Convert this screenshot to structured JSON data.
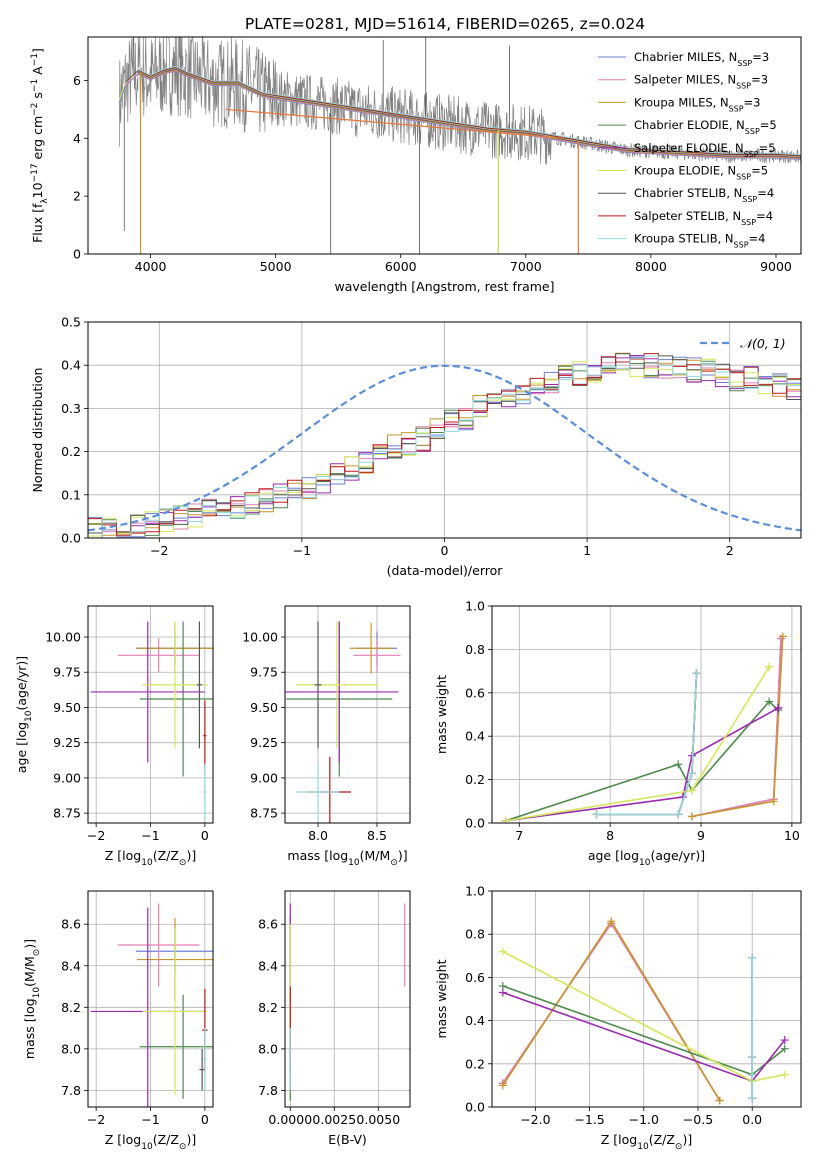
{
  "figure": {
    "title": "PLATE=0281, MJD=51614, FIBERID=0265, z=0.024"
  },
  "colors": {
    "Chabrier MILES": "#6b82d6",
    "Salpeter MILES": "#e67fb6",
    "Kroupa MILES": "#c8962a",
    "Chabrier ELODIE": "#4e8a4e",
    "Salpeter ELODIE": "#9a2ab0",
    "Kroupa ELODIE": "#d4e65a",
    "Chabrier STELIB": "#555555",
    "Salpeter STELIB": "#c01818",
    "Kroupa STELIB": "#8fd8e0",
    "data": "#808080",
    "gaussian": "#5b8fd9",
    "orange": "#e6783a"
  },
  "chart_data": [
    {
      "id": "spectrum",
      "type": "line",
      "title": "PLATE=0281, MJD=51614, FIBERID=0265, z=0.024",
      "xlabel": "wavelength [Angstrom, rest frame]",
      "ylabel_parts": [
        "Flux [f",
        "λ",
        "10",
        "−17",
        " erg cm",
        "−2",
        " s",
        "−1",
        " A",
        "−1",
        "]"
      ],
      "xlim": [
        3500,
        9200
      ],
      "ylim": [
        0,
        7.5
      ],
      "xticks": [
        4000,
        5000,
        6000,
        7000,
        8000,
        9000
      ],
      "yticks": [
        0,
        2,
        4,
        6
      ],
      "legend_position": "top-right",
      "legend": [
        {
          "name": "Chabrier MILES",
          "nssp": "3"
        },
        {
          "name": "Salpeter MILES",
          "nssp": "3"
        },
        {
          "name": "Kroupa MILES",
          "nssp": "3"
        },
        {
          "name": "Chabrier ELODIE",
          "nssp": "5"
        },
        {
          "name": "Salpeter ELODIE",
          "nssp": "5"
        },
        {
          "name": "Kroupa ELODIE",
          "nssp": "5"
        },
        {
          "name": "Chabrier STELIB",
          "nssp": "4"
        },
        {
          "name": "Salpeter STELIB",
          "nssp": "4"
        },
        {
          "name": "Kroupa STELIB",
          "nssp": "4"
        }
      ],
      "model_curve": {
        "x": [
          3750,
          3800,
          3900,
          4000,
          4100,
          4200,
          4300,
          4500,
          4700,
          4900,
          5200,
          5500,
          5800,
          6100,
          6400,
          6700,
          7000,
          7400,
          7800,
          8200,
          8600,
          9000,
          9200
        ],
        "y": [
          5.3,
          5.9,
          6.3,
          6.1,
          6.3,
          6.4,
          6.2,
          5.9,
          5.9,
          5.5,
          5.3,
          5.1,
          4.9,
          4.7,
          4.5,
          4.3,
          4.2,
          3.9,
          3.6,
          3.5,
          3.4,
          3.4,
          3.35
        ]
      },
      "model_starts": [
        3750,
        3780,
        3810,
        3850,
        3900
      ],
      "model_drops": [
        {
          "x": 3920,
          "series": "Kroupa MILES"
        },
        {
          "x": 6780,
          "series": "Kroupa ELODIE"
        },
        {
          "x": 7420,
          "series": "orange"
        }
      ],
      "noise_spikes": [
        {
          "x": 5440,
          "y": 0.0
        },
        {
          "x": 6150,
          "y": 0.0
        },
        {
          "x": 6780,
          "y": 0.0
        },
        {
          "x": 5860,
          "y": 7.4
        },
        {
          "x": 6200,
          "y": 7.5
        },
        {
          "x": 6870,
          "y": 7.2
        },
        {
          "x": 3860,
          "y": 7.5
        },
        {
          "x": 3790,
          "y": 0.8
        }
      ]
    },
    {
      "id": "residuals",
      "type": "line",
      "xlabel": "(data-model)/error",
      "ylabel": "Normed distribution",
      "xlim": [
        -2.5,
        2.5
      ],
      "ylim": [
        0,
        0.5
      ],
      "xticks": [
        -2,
        -1,
        0,
        1,
        2
      ],
      "yticks": [
        0,
        0.1,
        0.2,
        0.3,
        0.4,
        0.5
      ],
      "legend": {
        "label": "𝒩(0, 1)"
      },
      "bin_width": 0.1,
      "bin_start": -2.5,
      "hist_base": [
        0.02,
        0.022,
        0.025,
        0.03,
        0.035,
        0.04,
        0.045,
        0.05,
        0.06,
        0.065,
        0.075,
        0.085,
        0.09,
        0.1,
        0.11,
        0.12,
        0.13,
        0.15,
        0.16,
        0.18,
        0.19,
        0.21,
        0.22,
        0.23,
        0.25,
        0.27,
        0.28,
        0.3,
        0.31,
        0.33,
        0.34,
        0.35,
        0.36,
        0.37,
        0.38,
        0.39,
        0.39,
        0.4,
        0.395,
        0.4,
        0.4,
        0.4,
        0.39,
        0.39,
        0.38,
        0.37,
        0.37,
        0.36,
        0.35,
        0.34,
        0.32,
        0.3,
        0.29,
        0.27,
        0.26,
        0.24,
        0.23,
        0.21,
        0.2,
        0.18,
        0.17,
        0.15,
        0.14,
        0.13,
        0.11,
        0.1,
        0.09,
        0.08,
        0.07,
        0.065,
        0.055,
        0.05,
        0.045,
        0.04,
        0.035,
        0.03,
        0.028,
        0.025,
        0.022,
        0.02
      ]
    },
    {
      "id": "age-vs-Z",
      "type": "scatter",
      "xlabel_parts": [
        "Z [log",
        "10",
        "(Z/Z",
        "⊙",
        ")]"
      ],
      "ylabel_parts": [
        "age  [log",
        "10",
        "(age/yr)]"
      ],
      "xlim": [
        -2.15,
        0.15
      ],
      "ylim": [
        8.68,
        10.22
      ],
      "xticks": [
        -2,
        -1,
        0
      ],
      "yticks": [
        8.75,
        9.0,
        9.25,
        9.5,
        9.75,
        10.0
      ],
      "points": [
        {
          "s": "Chabrier MILES",
          "x": -0.55,
          "y": 9.92,
          "xe": 0.72,
          "ye": 0.12
        },
        {
          "s": "Salpeter MILES",
          "x": -0.85,
          "y": 9.87,
          "xe": 0.75,
          "ye": 0.12
        },
        {
          "s": "Kroupa MILES",
          "x": -0.55,
          "y": 9.92,
          "xe": 0.7,
          "ye": 0.18
        },
        {
          "s": "Chabrier ELODIE",
          "x": -0.4,
          "y": 9.56,
          "xe": 0.8,
          "ye": 0.55
        },
        {
          "s": "Salpeter ELODIE",
          "x": -1.05,
          "y": 9.61,
          "xe": 1.05,
          "ye": 0.5
        },
        {
          "s": "Kroupa ELODIE",
          "x": -0.55,
          "y": 9.66,
          "xe": 0.6,
          "ye": 0.45
        },
        {
          "s": "Chabrier STELIB",
          "x": -0.1,
          "y": 9.66,
          "xe": 0.05,
          "ye": 0.45
        },
        {
          "s": "Salpeter STELIB",
          "x": 0.0,
          "y": 9.3,
          "xe": 0.03,
          "ye": 0.25
        },
        {
          "s": "Kroupa STELIB",
          "x": 0.0,
          "y": 8.9,
          "xe": 0.03,
          "ye": 0.2
        }
      ]
    },
    {
      "id": "age-vs-mass",
      "type": "scatter",
      "xlabel_parts": [
        "mass [log",
        "10",
        "(M/M",
        "⊙",
        ")]"
      ],
      "ylabel": "",
      "xlim": [
        7.72,
        8.78
      ],
      "ylim": [
        8.68,
        10.22
      ],
      "xticks": [
        8.0,
        8.5
      ],
      "yticks": [
        8.75,
        9.0,
        9.25,
        9.5,
        9.75,
        10.0
      ],
      "points": [
        {
          "s": "Chabrier MILES",
          "x": 8.5,
          "y": 9.92,
          "xe": 0.17,
          "ye": 0.12
        },
        {
          "s": "Salpeter MILES",
          "x": 8.5,
          "y": 9.87,
          "xe": 0.2,
          "ye": 0.12
        },
        {
          "s": "Kroupa MILES",
          "x": 8.45,
          "y": 9.92,
          "xe": 0.18,
          "ye": 0.18
        },
        {
          "s": "Chabrier ELODIE",
          "x": 8.18,
          "y": 9.56,
          "xe": 0.45,
          "ye": 0.55
        },
        {
          "s": "Salpeter ELODIE",
          "x": 8.18,
          "y": 9.61,
          "xe": 0.5,
          "ye": 0.5
        },
        {
          "s": "Kroupa ELODIE",
          "x": 8.16,
          "y": 9.66,
          "xe": 0.35,
          "ye": 0.45
        },
        {
          "s": "Chabrier STELIB",
          "x": 8.0,
          "y": 9.66,
          "xe": 0.03,
          "ye": 0.45
        },
        {
          "s": "Salpeter STELIB",
          "x": 8.1,
          "y": 8.9,
          "xe": 0.18,
          "ye": 0.25
        },
        {
          "s": "Kroupa STELIB",
          "x": 8.0,
          "y": 8.9,
          "xe": 0.18,
          "ye": 0.2
        }
      ]
    },
    {
      "id": "mass-weight-vs-age",
      "type": "line",
      "xlabel_parts": [
        "age  [log",
        "10",
        "(age/yr)]"
      ],
      "ylabel": "mass weight",
      "xlim": [
        6.7,
        10.1
      ],
      "ylim": [
        0,
        1.0
      ],
      "xticks": [
        7,
        8,
        9,
        10
      ],
      "yticks": [
        0.0,
        0.2,
        0.4,
        0.6,
        0.8,
        1.0
      ],
      "series": [
        {
          "name": "Chabrier MILES",
          "x": [
            8.9,
            9.8,
            9.88
          ],
          "y": [
            0.03,
            0.11,
            0.85
          ]
        },
        {
          "name": "Salpeter MILES",
          "x": [
            8.9,
            9.8,
            9.88
          ],
          "y": [
            0.03,
            0.11,
            0.85
          ]
        },
        {
          "name": "Kroupa MILES",
          "x": [
            8.9,
            9.8,
            9.9
          ],
          "y": [
            0.03,
            0.1,
            0.86
          ]
        },
        {
          "name": "Chabrier ELODIE",
          "x": [
            6.85,
            8.75,
            8.9,
            9.75,
            9.85
          ],
          "y": [
            0.01,
            0.27,
            0.15,
            0.56,
            0.52
          ]
        },
        {
          "name": "Salpeter ELODIE",
          "x": [
            6.85,
            8.8,
            8.9,
            9.85,
            9.85
          ],
          "y": [
            0.01,
            0.12,
            0.31,
            0.53,
            0.53
          ]
        },
        {
          "name": "Kroupa ELODIE",
          "x": [
            6.85,
            8.9,
            9.75,
            9.75
          ],
          "y": [
            0.01,
            0.15,
            0.72,
            0.72
          ]
        },
        {
          "name": "Chabrier STELIB",
          "x": [
            7.85,
            8.75,
            8.9,
            8.95
          ],
          "y": [
            0.04,
            0.04,
            0.23,
            0.69
          ]
        },
        {
          "name": "Salpeter STELIB",
          "x": [
            7.85,
            8.75,
            8.9,
            8.95
          ],
          "y": [
            0.04,
            0.04,
            0.23,
            0.69
          ]
        },
        {
          "name": "Kroupa STELIB",
          "x": [
            7.85,
            8.75,
            8.9,
            8.95
          ],
          "y": [
            0.04,
            0.04,
            0.23,
            0.69
          ]
        }
      ]
    },
    {
      "id": "mass-vs-Z",
      "type": "scatter",
      "xlabel_parts": [
        "Z [log",
        "10",
        "(Z/Z",
        "⊙",
        ")]"
      ],
      "ylabel_parts": [
        "mass [log",
        "10",
        "(M/M",
        "⊙",
        ")]"
      ],
      "xlim": [
        -2.15,
        0.15
      ],
      "ylim": [
        7.72,
        8.76
      ],
      "xticks": [
        -2,
        -1,
        0
      ],
      "yticks": [
        7.8,
        8.0,
        8.2,
        8.4,
        8.6
      ],
      "points": [
        {
          "s": "Chabrier MILES",
          "x": -0.55,
          "y": 8.47,
          "xe": 0.72,
          "ye": 0.1
        },
        {
          "s": "Salpeter MILES",
          "x": -0.85,
          "y": 8.5,
          "xe": 0.75,
          "ye": 0.2
        },
        {
          "s": "Kroupa MILES",
          "x": -0.55,
          "y": 8.43,
          "xe": 0.7,
          "ye": 0.2
        },
        {
          "s": "Chabrier ELODIE",
          "x": -0.4,
          "y": 8.01,
          "xe": 0.8,
          "ye": 0.25
        },
        {
          "s": "Salpeter ELODIE",
          "x": -1.05,
          "y": 8.18,
          "xe": 1.05,
          "ye": 0.5
        },
        {
          "s": "Kroupa ELODIE",
          "x": -0.55,
          "y": 8.18,
          "xe": 0.6,
          "ye": 0.4
        },
        {
          "s": "Chabrier STELIB",
          "x": -0.05,
          "y": 7.9,
          "xe": 0.05,
          "ye": 0.1
        },
        {
          "s": "Salpeter STELIB",
          "x": 0.0,
          "y": 8.09,
          "xe": 0.05,
          "ye": 0.2
        },
        {
          "s": "Kroupa STELIB",
          "x": 0.0,
          "y": 7.95,
          "xe": 0.03,
          "ye": 0.15
        }
      ]
    },
    {
      "id": "mass-vs-ebv",
      "type": "scatter",
      "xlabel": "E(B-V)",
      "ylabel": "",
      "xlim": [
        -0.0003,
        0.0068
      ],
      "ylim": [
        7.72,
        8.76
      ],
      "xticks": [
        0.0,
        0.0025,
        0.005
      ],
      "xtick_labels": [
        "0.0000",
        "0.0025",
        "0.0050"
      ],
      "yticks": [
        7.8,
        8.0,
        8.2,
        8.4,
        8.6
      ],
      "points": [
        {
          "s": "Chabrier MILES",
          "x": 0.0,
          "y": 8.45,
          "xe": 0,
          "ye": 0.1
        },
        {
          "s": "Salpeter MILES",
          "x": 0.0065,
          "y": 8.5,
          "xe": 0,
          "ye": 0.2
        },
        {
          "s": "Kroupa MILES",
          "x": 0.0,
          "y": 8.43,
          "xe": 0,
          "ye": 0.2
        },
        {
          "s": "Chabrier ELODIE",
          "x": 0.0,
          "y": 8.0,
          "xe": 0,
          "ye": 0.25
        },
        {
          "s": "Salpeter ELODIE",
          "x": 0.0,
          "y": 8.5,
          "xe": 0,
          "ye": 0.2
        },
        {
          "s": "Kroupa ELODIE",
          "x": 0.0,
          "y": 8.2,
          "xe": 0,
          "ye": 0.4
        },
        {
          "s": "Chabrier STELIB",
          "x": 0.0,
          "y": 7.9,
          "xe": 0,
          "ye": 0.1
        },
        {
          "s": "Salpeter STELIB",
          "x": 0.0,
          "y": 8.1,
          "xe": 0,
          "ye": 0.2
        },
        {
          "s": "Kroupa STELIB",
          "x": 0.0,
          "y": 7.95,
          "xe": 0,
          "ye": 0.15
        }
      ]
    },
    {
      "id": "mass-weight-vs-Z",
      "type": "line",
      "xlabel_parts": [
        "Z [log",
        "10",
        "(Z/Z",
        "⊙",
        ")]"
      ],
      "ylabel": "mass weight",
      "xlim": [
        -2.4,
        0.45
      ],
      "ylim": [
        0,
        1.0
      ],
      "xticks": [
        -2.0,
        -1.5,
        -1.0,
        -0.5,
        0.0
      ],
      "yticks": [
        0.0,
        0.2,
        0.4,
        0.6,
        0.8,
        1.0
      ],
      "series": [
        {
          "name": "Chabrier MILES",
          "x": [
            -2.3,
            -1.3,
            -0.3
          ],
          "y": [
            0.11,
            0.85,
            0.03
          ]
        },
        {
          "name": "Salpeter MILES",
          "x": [
            -2.3,
            -1.3,
            -0.3
          ],
          "y": [
            0.11,
            0.85,
            0.03
          ]
        },
        {
          "name": "Kroupa MILES",
          "x": [
            -2.3,
            -1.3,
            -0.3
          ],
          "y": [
            0.1,
            0.86,
            0.03
          ]
        },
        {
          "name": "Chabrier ELODIE",
          "x": [
            -2.3,
            0.0,
            0.3
          ],
          "y": [
            0.56,
            0.15,
            0.27
          ]
        },
        {
          "name": "Salpeter ELODIE",
          "x": [
            -2.3,
            0.0,
            0.3
          ],
          "y": [
            0.53,
            0.12,
            0.31
          ]
        },
        {
          "name": "Kroupa ELODIE",
          "x": [
            -2.3,
            0.0,
            0.3
          ],
          "y": [
            0.72,
            0.12,
            0.15
          ]
        },
        {
          "name": "Chabrier STELIB",
          "x": [
            0.0,
            0.0,
            0.0,
            0.0
          ],
          "y": [
            0.04,
            0.15,
            0.23,
            0.69
          ]
        },
        {
          "name": "Salpeter STELIB",
          "x": [
            0.0,
            0.0,
            0.0,
            0.0
          ],
          "y": [
            0.04,
            0.15,
            0.23,
            0.69
          ]
        },
        {
          "name": "Kroupa STELIB",
          "x": [
            0.0,
            0.0,
            0.0,
            0.0
          ],
          "y": [
            0.04,
            0.15,
            0.23,
            0.69
          ]
        }
      ]
    }
  ]
}
